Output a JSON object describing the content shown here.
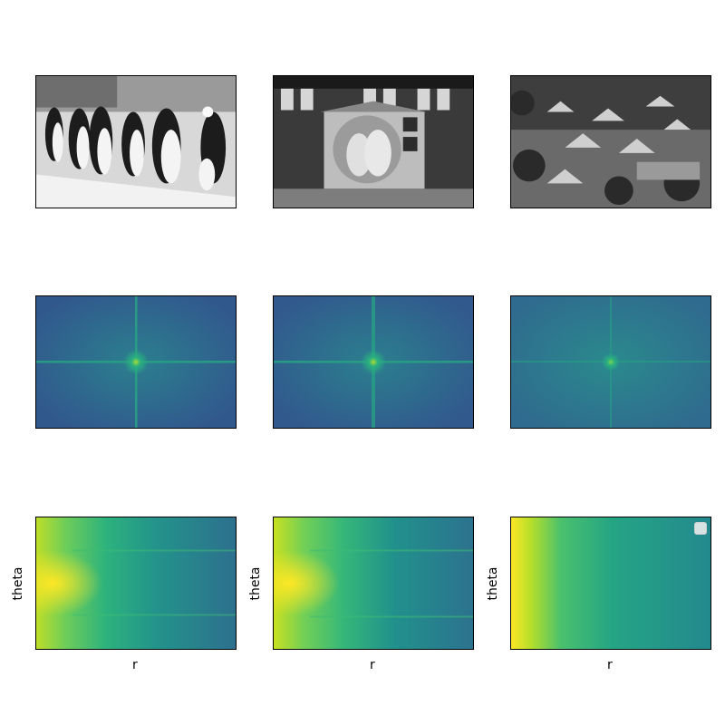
{
  "chart_data": [
    {
      "type": "image",
      "row": "photo",
      "subject": "penguins",
      "colormap": "gray"
    },
    {
      "type": "image",
      "row": "photo",
      "subject": "ema-plaque",
      "colormap": "gray"
    },
    {
      "type": "image",
      "row": "photo",
      "subject": "village",
      "colormap": "gray"
    },
    {
      "type": "heatmap",
      "row": "fft",
      "colormap": "viridis",
      "centered_peak": true,
      "cross_strength": "strong"
    },
    {
      "type": "heatmap",
      "row": "fft",
      "colormap": "viridis",
      "centered_peak": true,
      "cross_strength": "strong"
    },
    {
      "type": "heatmap",
      "row": "fft",
      "colormap": "viridis",
      "centered_peak": true,
      "cross_strength": "weak"
    },
    {
      "type": "heatmap",
      "row": "polar",
      "colormap": "viridis",
      "xlabel": "r",
      "ylabel": "theta",
      "legend": false
    },
    {
      "type": "heatmap",
      "row": "polar",
      "colormap": "viridis",
      "xlabel": "r",
      "ylabel": "theta",
      "legend": false
    },
    {
      "type": "heatmap",
      "row": "polar",
      "colormap": "viridis",
      "xlabel": "r",
      "ylabel": "theta",
      "legend": true,
      "legend_position": "top-right"
    }
  ],
  "labels": {
    "r1": "r",
    "r2": "r",
    "r3": "r",
    "t1": "theta",
    "t2": "theta",
    "t3": "theta"
  }
}
